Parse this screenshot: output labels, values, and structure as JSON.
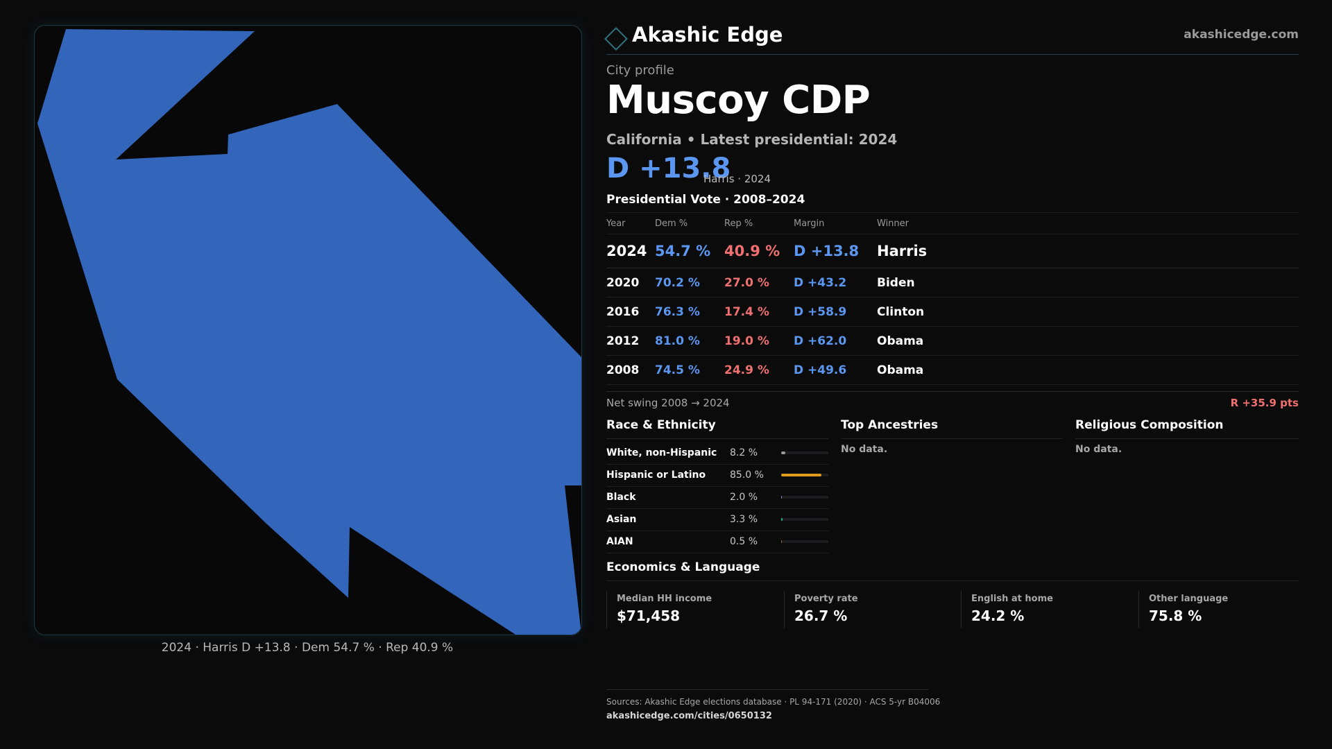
{
  "brand": {
    "name": "Akashic Edge",
    "url": "akashicedge.com"
  },
  "profile": {
    "kicker": "City profile",
    "title": "Muscoy CDP",
    "subline": "California • Latest presidential: 2024",
    "headline_margin": "D +13.8",
    "headline_note": "Harris · 2024"
  },
  "map": {
    "fill_color": "#3366bb",
    "caption": "2024 · Harris D +13.8 · Dem 54.7 % · Rep 40.9 %"
  },
  "vote_table": {
    "title": "Presidential Vote · 2008–2024",
    "headers": [
      "Year",
      "Dem %",
      "Rep %",
      "Margin",
      "Winner"
    ],
    "rows": [
      {
        "year": "2024",
        "dem": "54.7 %",
        "rep": "40.9 %",
        "margin": "D +13.8",
        "winner": "Harris"
      },
      {
        "year": "2020",
        "dem": "70.2 %",
        "rep": "27.0 %",
        "margin": "D +43.2",
        "winner": "Biden"
      },
      {
        "year": "2016",
        "dem": "76.3 %",
        "rep": "17.4 %",
        "margin": "D +58.9",
        "winner": "Clinton"
      },
      {
        "year": "2012",
        "dem": "81.0 %",
        "rep": "19.0 %",
        "margin": "D +62.0",
        "winner": "Obama"
      },
      {
        "year": "2008",
        "dem": "74.5 %",
        "rep": "24.9 %",
        "margin": "D +49.6",
        "winner": "Obama"
      }
    ],
    "colors": {
      "dem": "#5b97f0",
      "rep": "#f07070"
    }
  },
  "swing": {
    "label": "Net swing 2008 → 2024",
    "value": "R +35.9 pts"
  },
  "race": {
    "title": "Race & Ethnicity",
    "rows": [
      {
        "label": "White, non-Hispanic",
        "value": "8.2 %",
        "fraction": 0.082,
        "color": "#9a9a9a"
      },
      {
        "label": "Hispanic or Latino",
        "value": "85.0 %",
        "fraction": 0.85,
        "color": "#e09a1e"
      },
      {
        "label": "Black",
        "value": "2.0 %",
        "fraction": 0.02,
        "color": "#6a8fd0"
      },
      {
        "label": "Asian",
        "value": "3.3 %",
        "fraction": 0.033,
        "color": "#2bb38a"
      },
      {
        "label": "AIAN",
        "value": "0.5 %",
        "fraction": 0.005,
        "color": "#8a6a4a"
      }
    ]
  },
  "ancestries": {
    "title": "Top Ancestries",
    "empty": "No data."
  },
  "religion": {
    "title": "Religious Composition",
    "empty": "No data."
  },
  "economics": {
    "title": "Economics & Language",
    "cells": [
      {
        "label": "Median HH income",
        "value": "$71,458"
      },
      {
        "label": "Poverty rate",
        "value": "26.7 %"
      },
      {
        "label": "English at home",
        "value": "24.2 %"
      },
      {
        "label": "Other language",
        "value": "75.8 %"
      }
    ]
  },
  "footer": {
    "sources": "Sources: Akashic Edge elections database · PL 94-171 (2020) · ACS 5-yr B04006",
    "link": "akashicedge.com/cities/0650132"
  }
}
